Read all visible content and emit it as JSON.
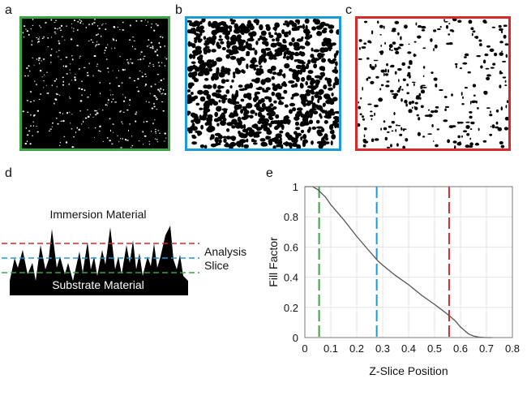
{
  "panels": {
    "a": {
      "label": "a",
      "frame_color": "#3aa346",
      "mode": "sparse-white-on-black"
    },
    "b": {
      "label": "b",
      "frame_color": "#1b9bd6",
      "mode": "mixed"
    },
    "c": {
      "label": "c",
      "frame_color": "#d42a2a",
      "mode": "sparse-black-on-white"
    }
  },
  "diagram": {
    "label": "d",
    "top_text": "Immersion Material",
    "bottom_text": "Substrate Material",
    "slice_text_1": "Analysis",
    "slice_text_2": "Slice",
    "line_colors": {
      "top": "#d42a2a",
      "middle": "#1b9bd6",
      "bottom": "#3aa346"
    }
  },
  "chart_label": "e",
  "chart_data": {
    "type": "line",
    "xlabel": "Z-Slice Position",
    "ylabel": "Fill Factor",
    "xlim": [
      0,
      0.8
    ],
    "ylim": [
      0,
      1
    ],
    "xticks": [
      "0",
      "0.1",
      "0.2",
      "0.3",
      "0.4",
      "0.5",
      "0.6",
      "0.7",
      "0.8"
    ],
    "yticks": [
      "0",
      "0.2",
      "0.4",
      "0.6",
      "0.8",
      "1"
    ],
    "grid": true,
    "series": [
      {
        "color": "#555555",
        "x": [
          0.0,
          0.03,
          0.05,
          0.08,
          0.1,
          0.15,
          0.2,
          0.25,
          0.28,
          0.3,
          0.35,
          0.4,
          0.45,
          0.5,
          0.55,
          0.58,
          0.6,
          0.63,
          0.65,
          0.67,
          0.7,
          0.72
        ],
        "y": [
          1.0,
          1.0,
          0.98,
          0.93,
          0.88,
          0.78,
          0.67,
          0.57,
          0.51,
          0.48,
          0.41,
          0.35,
          0.28,
          0.22,
          0.155,
          0.11,
          0.07,
          0.025,
          0.01,
          0.003,
          0.0,
          0.0
        ]
      }
    ],
    "vlines": [
      {
        "x": 0.055,
        "color": "#3aa346"
      },
      {
        "x": 0.277,
        "color": "#1b9bd6"
      },
      {
        "x": 0.556,
        "color": "#d42a2a"
      }
    ]
  }
}
